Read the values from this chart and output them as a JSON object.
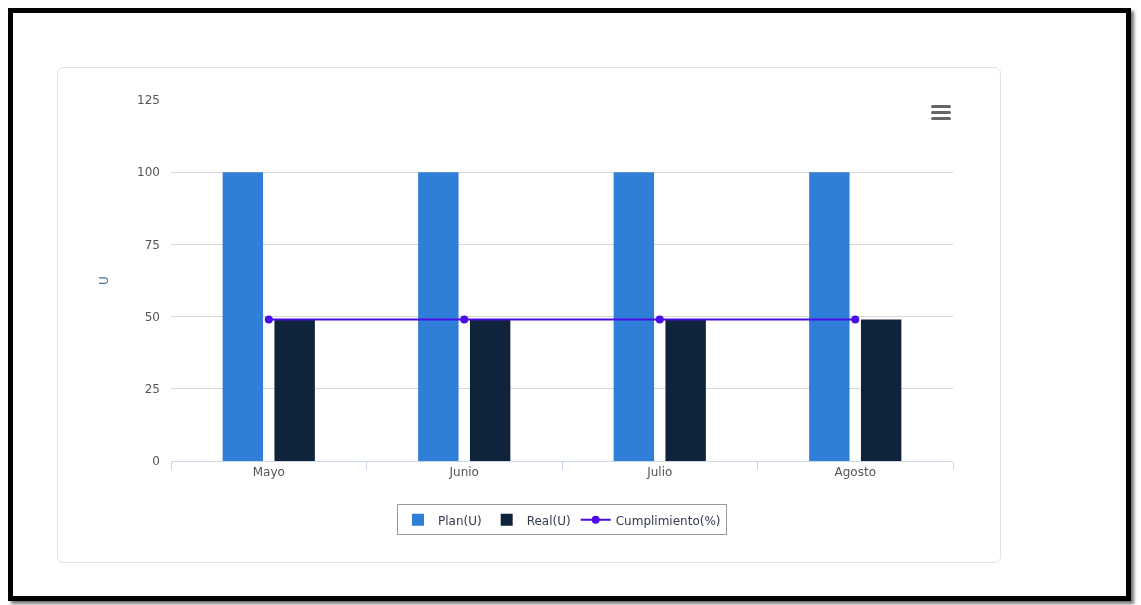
{
  "chart_data": {
    "type": "bar",
    "ylabel": "U",
    "categories": [
      "Mayo",
      "Junio",
      "Julio",
      "Agosto"
    ],
    "series": [
      {
        "name": "Plan(U)",
        "color": "#2f7ed8",
        "values": [
          100,
          100,
          100,
          100
        ]
      },
      {
        "name": "Real(U)",
        "color": "#0f233a",
        "values": [
          49,
          49,
          49,
          49
        ]
      },
      {
        "name": "Cumplimiento(%)",
        "type": "line",
        "color": "#4a0de6",
        "values": [
          49,
          49,
          49,
          49
        ]
      }
    ],
    "ylim": [
      0,
      125
    ],
    "yticks": [
      0,
      25,
      50,
      75,
      100,
      125
    ],
    "grid": "y",
    "legend": "bottom",
    "marker": "circle",
    "line_style": "solid"
  }
}
